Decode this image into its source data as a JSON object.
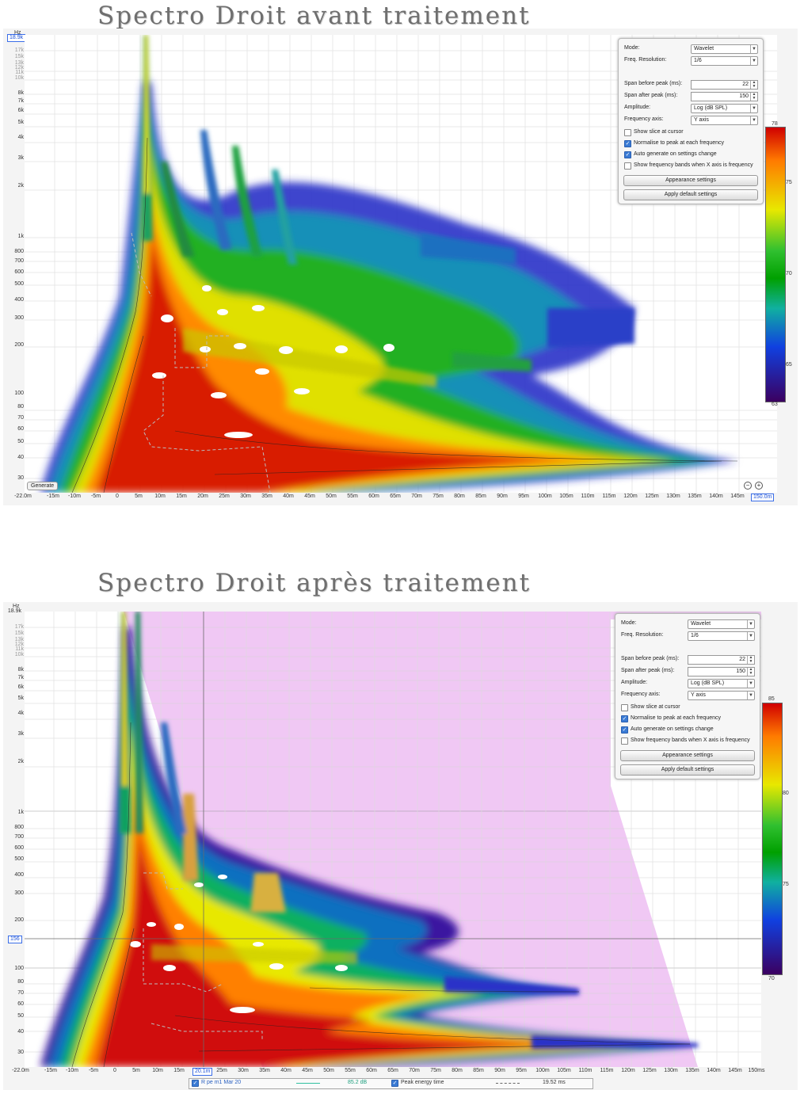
{
  "titles": {
    "top": "Spectro Droit avant traitement",
    "bottom": "Spectro Droit après traitement"
  },
  "y_axis": {
    "unit": "Hz",
    "max_label": "18.9k",
    "labels": [
      "17k",
      "15k",
      "13k",
      "12k",
      "11k",
      "10k",
      "8k",
      "7k",
      "6k",
      "5k",
      "4k",
      "3k",
      "2k",
      "1k",
      "800",
      "700",
      "600",
      "500",
      "400",
      "300",
      "200",
      "100",
      "80",
      "70",
      "60",
      "50",
      "40",
      "30"
    ]
  },
  "top_plot": {
    "x_labels": [
      "-22.0m",
      "-15m",
      "-10m",
      "-5m",
      "0",
      "5m",
      "10m",
      "15m",
      "20m",
      "25m",
      "30m",
      "35m",
      "40m",
      "45m",
      "50m",
      "55m",
      "60m",
      "65m",
      "70m",
      "75m",
      "80m",
      "85m",
      "90m",
      "95m",
      "100m",
      "105m",
      "110m",
      "115m",
      "120m",
      "125m",
      "130m",
      "135m",
      "140m",
      "145m",
      "150.0m"
    ],
    "generate_label": "Generate",
    "colorbar": {
      "labels": [
        "78",
        "75",
        "70",
        "65",
        "63"
      ],
      "max": 78,
      "min": 63
    }
  },
  "bottom_plot": {
    "x_labels": [
      "-22.0m",
      "-15m",
      "-10m",
      "-5m",
      "0",
      "5m",
      "10m",
      "15m",
      "20.1m",
      "25m",
      "30m",
      "35m",
      "40m",
      "45m",
      "50m",
      "55m",
      "60m",
      "65m",
      "70m",
      "75m",
      "80m",
      "85m",
      "90m",
      "95m",
      "100m",
      "105m",
      "110m",
      "115m",
      "120m",
      "125m",
      "130m",
      "135m",
      "140m",
      "145m",
      "150ms"
    ],
    "cursor_freq": "156",
    "cursor_time": "20.1m",
    "colorbar": {
      "labels": [
        "85",
        "80",
        "75",
        "70"
      ],
      "max": 85,
      "min": 70
    },
    "legend": {
      "series": "R pe m1 Mar 20",
      "series_value": "85.2 dB",
      "peak_label": "Peak energy time",
      "peak_value": "19.52 ms"
    }
  },
  "settings": {
    "mode_label": "Mode:",
    "mode_value": "Wavelet",
    "freq_res_label": "Freq. Resolution:",
    "freq_res_value": "1/6",
    "span_before_label": "Span before peak (ms):",
    "span_before_value": "22",
    "span_after_label": "Span after peak (ms):",
    "span_after_value": "150",
    "amplitude_label": "Amplitude:",
    "amplitude_value": "Log (dB SPL)",
    "freq_axis_label": "Frequency axis:",
    "freq_axis_value": "Y axis",
    "show_slice": "Show slice at cursor",
    "normalise": "Normalise to peak at each frequency",
    "auto_generate": "Auto generate on settings change",
    "show_bands": "Show frequency bands when X axis is frequency",
    "appearance_button": "Appearance settings",
    "default_button": "Apply default settings"
  },
  "colors": {
    "peak": "#c00000",
    "high": "#ff8800",
    "mid": "#00a000",
    "low": "#1040e0",
    "floor": "#3b0060",
    "masked_region": "#f0c8f4"
  }
}
